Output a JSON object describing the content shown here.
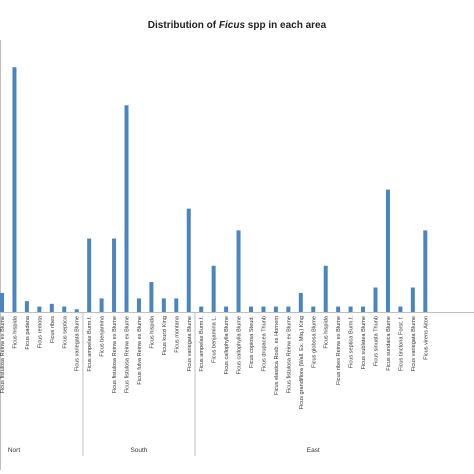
{
  "chart_data": {
    "type": "bar",
    "title_prefix": "Distribution of ",
    "title_italic": "Ficus",
    "title_suffix": " spp in each area",
    "bar_color": "#4a85c0",
    "ylim": [
      0,
      100
    ],
    "grid": false,
    "legend": "none",
    "groups": [
      {
        "name": "Nort",
        "categories": [
          "Ficus fistulosa Reinw ex Blume",
          "Ficus hispida",
          "Ficus padana",
          "Ficus remota",
          "Ficus ribes",
          "Ficus septica",
          "Ficus variegata Blume"
        ],
        "values": [
          7,
          90,
          4,
          2,
          3,
          2,
          1
        ]
      },
      {
        "name": "South",
        "categories": [
          "Ficus ampelas Burm.f.",
          "Ficus benjamina",
          "Ficus fistulosa Reinw ex Blume",
          "Ficus fistulosa Reinw ex Blume",
          "Ficus fulva Reinw ex Blume",
          "Ficus hispida",
          "Ficus kurzi King",
          "Ficus montana",
          "Ficus variegata Blume"
        ],
        "values": [
          27,
          5,
          27,
          76,
          5,
          11,
          5,
          5,
          38
        ]
      },
      {
        "name": "East",
        "categories": [
          "Ficus ampelas Burm.f.",
          "Ficus benjamina L.",
          "Ficus callophylla Blume",
          "Ficus callophylla Blume",
          "Ficus copiosa Steud.",
          "Ficus drupacea Thunb",
          "Ficus elastica Roxb. ex Hornem",
          "Ficus fistulosa Reinw ex Blume",
          "Ficus grandiflora (Wall. Ex. Miq.) King",
          "Ficus globosa Blume",
          "Ficus hispida",
          "Ficus ribes Reinw ex Blume",
          "Ficus septica Burm.f.",
          "Ficus sublatea Blume",
          "Ficus sinuata Thunb",
          "Ficus sundaica Blume",
          "Ficus tinctoria Forst. f.",
          "Ficus variegata Blume",
          "Ficus virens Aiton"
        ],
        "values": [
          2,
          17,
          2,
          30,
          2,
          2,
          2,
          2,
          7,
          2,
          17,
          2,
          2,
          2,
          9,
          45,
          2,
          9,
          30
        ]
      }
    ]
  }
}
